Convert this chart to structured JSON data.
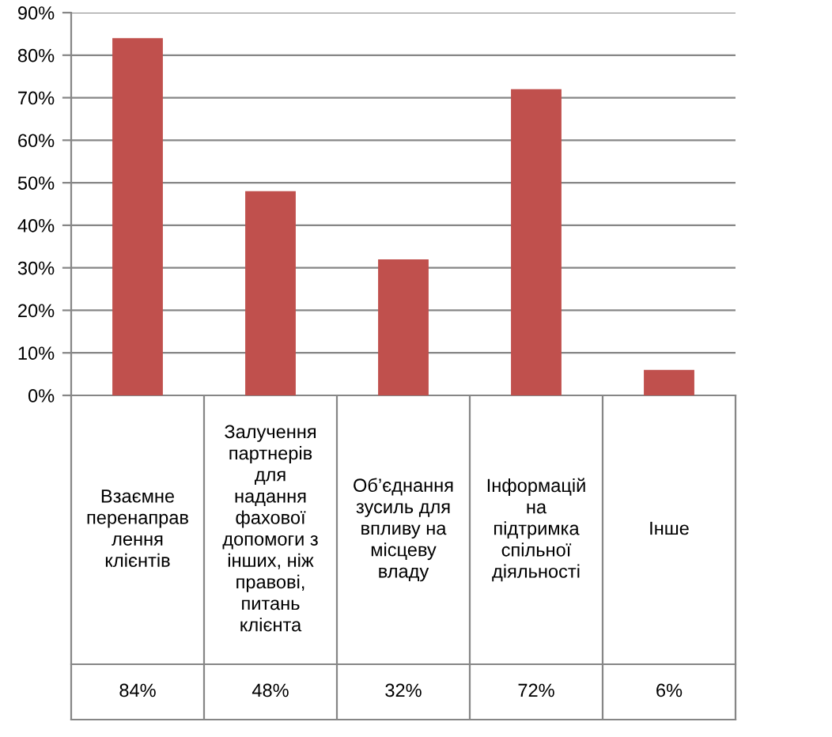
{
  "chart_data": {
    "type": "bar",
    "categories": [
      "Взаємне\nперенаправ\nлення\nклієнтів",
      "Залучення\nпартнерів\nдля\nнадання\nфахової\nдопомоги з\nінших, ніж\nправові,\nпитань\nклієнта",
      "Об’єднання\nзусиль для\nвпливу на\nмісцеву\nвладу",
      "Інформацій\nна\nпідтримка\nспільної\nдіяльності",
      "Інше"
    ],
    "values": [
      84,
      48,
      32,
      72,
      6
    ],
    "value_labels": [
      "84%",
      "48%",
      "32%",
      "72%",
      "6%"
    ],
    "color": "#c0504d",
    "ylim": [
      0,
      90
    ],
    "yticks": [
      {
        "value": 0,
        "label": "0%"
      },
      {
        "value": 10,
        "label": "10%"
      },
      {
        "value": 20,
        "label": "20%"
      },
      {
        "value": 30,
        "label": "30%"
      },
      {
        "value": 40,
        "label": "40%"
      },
      {
        "value": 50,
        "label": "50%"
      },
      {
        "value": 60,
        "label": "60%"
      },
      {
        "value": 70,
        "label": "70%"
      },
      {
        "value": 80,
        "label": "80%"
      },
      {
        "value": 90,
        "label": "90%"
      }
    ],
    "grid": "y",
    "legend": false
  }
}
